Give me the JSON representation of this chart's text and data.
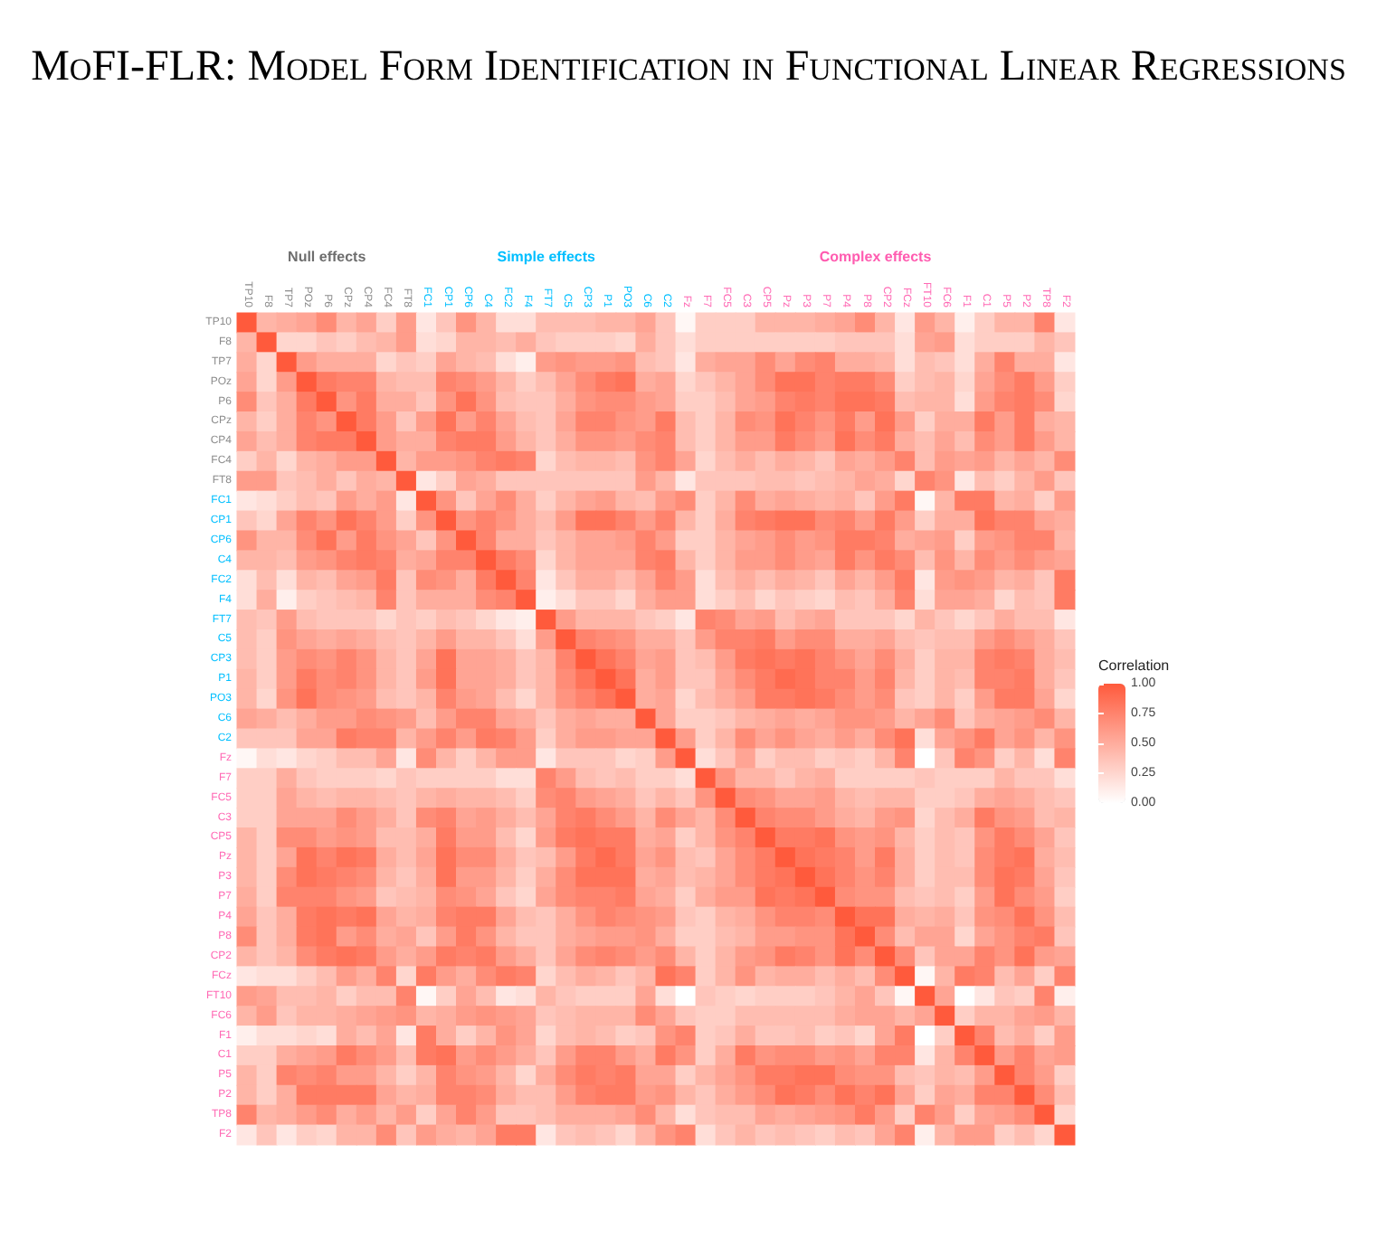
{
  "chart_data": {
    "type": "heatmap",
    "title": "MoFI-FLR: Model Form Identification in Functional Linear Regressions",
    "categories": [
      "TP10",
      "F8",
      "TP7",
      "POz",
      "P6",
      "CPz",
      "CP4",
      "FC4",
      "FT8",
      "FC1",
      "CP1",
      "CP6",
      "C4",
      "FC2",
      "F4",
      "FT7",
      "C5",
      "CP3",
      "P1",
      "PO3",
      "C6",
      "C2",
      "Fz",
      "F7",
      "FC5",
      "C3",
      "CP5",
      "Pz",
      "P3",
      "P7",
      "P4",
      "P8",
      "CP2",
      "FCz",
      "FT10",
      "FC6",
      "F1",
      "C1",
      "P5",
      "P2",
      "TP8",
      "F2"
    ],
    "y_categories": [
      "TP10",
      "F8",
      "TP7",
      "POz",
      "P6",
      "CPz",
      "CP4",
      "FC4",
      "FT8",
      "FC1",
      "CP1",
      "CP6",
      "C4",
      "FC2",
      "F4",
      "FT7",
      "C5",
      "CP3",
      "P1",
      "PO3",
      "C6",
      "C2",
      "Fz",
      "F7",
      "FC5",
      "C3",
      "CP5",
      "Pz",
      "P3",
      "P7",
      "P4",
      "P8",
      "CP2",
      "FCz",
      "FT10",
      "FC6",
      "F1",
      "C1",
      "P5",
      "P2",
      "TP8",
      "F2"
    ],
    "cells": [
      [
        1,
        0.45,
        0.5,
        0.55,
        0.7,
        0.45,
        0.55,
        0.3,
        0.6,
        0.15,
        0.35,
        0.65,
        0.45,
        0.2,
        0.2,
        0.4,
        0.4,
        0.4,
        0.45,
        0.45,
        0.55,
        0.35,
        0.05,
        0.3,
        0.3,
        0.3,
        0.45,
        0.45,
        0.45,
        0.5,
        0.55,
        0.7,
        0.45,
        0.15,
        0.6,
        0.45,
        0.1,
        0.3,
        0.45,
        0.45,
        0.75,
        0.15
      ],
      [
        0.45,
        1,
        0.25,
        0.25,
        0.35,
        0.3,
        0.4,
        0.45,
        0.6,
        0.2,
        0.25,
        0.45,
        0.45,
        0.4,
        0.5,
        0.35,
        0.3,
        0.3,
        0.3,
        0.25,
        0.5,
        0.35,
        0.2,
        0.3,
        0.3,
        0.3,
        0.3,
        0.3,
        0.3,
        0.3,
        0.35,
        0.35,
        0.35,
        0.2,
        0.55,
        0.6,
        0.2,
        0.3,
        0.3,
        0.3,
        0.45,
        0.35
      ],
      [
        0.5,
        0.25,
        1,
        0.6,
        0.5,
        0.5,
        0.5,
        0.25,
        0.35,
        0.3,
        0.55,
        0.45,
        0.4,
        0.2,
        0.1,
        0.6,
        0.65,
        0.6,
        0.6,
        0.65,
        0.4,
        0.35,
        0.15,
        0.5,
        0.55,
        0.55,
        0.7,
        0.55,
        0.7,
        0.75,
        0.5,
        0.5,
        0.45,
        0.2,
        0.4,
        0.35,
        0.2,
        0.5,
        0.75,
        0.5,
        0.5,
        0.15
      ],
      [
        0.55,
        0.25,
        0.6,
        1,
        0.8,
        0.75,
        0.75,
        0.45,
        0.4,
        0.4,
        0.75,
        0.7,
        0.6,
        0.45,
        0.3,
        0.4,
        0.55,
        0.7,
        0.8,
        0.85,
        0.5,
        0.55,
        0.25,
        0.35,
        0.45,
        0.55,
        0.7,
        0.85,
        0.85,
        0.75,
        0.8,
        0.8,
        0.7,
        0.3,
        0.4,
        0.45,
        0.25,
        0.55,
        0.7,
        0.8,
        0.6,
        0.3
      ],
      [
        0.7,
        0.35,
        0.5,
        0.8,
        1,
        0.65,
        0.8,
        0.5,
        0.5,
        0.35,
        0.65,
        0.85,
        0.65,
        0.4,
        0.35,
        0.35,
        0.5,
        0.65,
        0.7,
        0.7,
        0.6,
        0.55,
        0.3,
        0.3,
        0.4,
        0.55,
        0.6,
        0.75,
        0.8,
        0.75,
        0.85,
        0.85,
        0.8,
        0.4,
        0.45,
        0.45,
        0.2,
        0.6,
        0.75,
        0.8,
        0.7,
        0.25
      ],
      [
        0.45,
        0.3,
        0.5,
        0.75,
        0.65,
        1,
        0.8,
        0.6,
        0.35,
        0.6,
        0.85,
        0.6,
        0.75,
        0.55,
        0.4,
        0.35,
        0.55,
        0.75,
        0.75,
        0.65,
        0.6,
        0.8,
        0.4,
        0.3,
        0.45,
        0.7,
        0.65,
        0.85,
        0.75,
        0.65,
        0.8,
        0.6,
        0.85,
        0.6,
        0.3,
        0.5,
        0.5,
        0.8,
        0.6,
        0.8,
        0.5,
        0.45
      ],
      [
        0.55,
        0.4,
        0.5,
        0.75,
        0.8,
        0.8,
        1,
        0.6,
        0.5,
        0.5,
        0.75,
        0.8,
        0.8,
        0.6,
        0.45,
        0.35,
        0.5,
        0.65,
        0.65,
        0.6,
        0.7,
        0.75,
        0.4,
        0.3,
        0.45,
        0.6,
        0.6,
        0.8,
        0.7,
        0.6,
        0.85,
        0.7,
        0.8,
        0.5,
        0.4,
        0.55,
        0.4,
        0.7,
        0.6,
        0.8,
        0.6,
        0.45
      ],
      [
        0.3,
        0.45,
        0.25,
        0.45,
        0.5,
        0.6,
        0.6,
        1,
        0.45,
        0.6,
        0.6,
        0.65,
        0.75,
        0.8,
        0.75,
        0.25,
        0.4,
        0.45,
        0.45,
        0.4,
        0.65,
        0.75,
        0.55,
        0.25,
        0.4,
        0.5,
        0.4,
        0.5,
        0.45,
        0.35,
        0.55,
        0.5,
        0.6,
        0.75,
        0.4,
        0.6,
        0.55,
        0.6,
        0.45,
        0.55,
        0.45,
        0.7
      ],
      [
        0.6,
        0.6,
        0.35,
        0.4,
        0.5,
        0.35,
        0.5,
        0.45,
        1,
        0.15,
        0.3,
        0.55,
        0.5,
        0.35,
        0.35,
        0.35,
        0.35,
        0.35,
        0.35,
        0.35,
        0.6,
        0.45,
        0.15,
        0.35,
        0.35,
        0.35,
        0.4,
        0.4,
        0.35,
        0.4,
        0.45,
        0.55,
        0.5,
        0.25,
        0.75,
        0.65,
        0.15,
        0.4,
        0.3,
        0.45,
        0.6,
        0.35
      ],
      [
        0.15,
        0.2,
        0.3,
        0.4,
        0.35,
        0.6,
        0.5,
        0.6,
        0.15,
        1,
        0.65,
        0.35,
        0.55,
        0.7,
        0.5,
        0.3,
        0.45,
        0.55,
        0.6,
        0.45,
        0.4,
        0.6,
        0.7,
        0.3,
        0.45,
        0.7,
        0.5,
        0.55,
        0.5,
        0.45,
        0.5,
        0.35,
        0.6,
        0.8,
        0.05,
        0.45,
        0.8,
        0.8,
        0.45,
        0.5,
        0.3,
        0.6
      ],
      [
        0.35,
        0.25,
        0.55,
        0.75,
        0.65,
        0.85,
        0.75,
        0.6,
        0.3,
        0.65,
        1,
        0.65,
        0.75,
        0.65,
        0.5,
        0.4,
        0.6,
        0.85,
        0.85,
        0.75,
        0.6,
        0.75,
        0.45,
        0.3,
        0.5,
        0.75,
        0.8,
        0.85,
        0.85,
        0.7,
        0.75,
        0.6,
        0.8,
        0.6,
        0.3,
        0.5,
        0.5,
        0.85,
        0.75,
        0.75,
        0.55,
        0.5
      ],
      [
        0.65,
        0.45,
        0.45,
        0.7,
        0.85,
        0.6,
        0.8,
        0.65,
        0.55,
        0.35,
        0.65,
        1,
        0.75,
        0.5,
        0.5,
        0.35,
        0.45,
        0.55,
        0.55,
        0.6,
        0.75,
        0.6,
        0.3,
        0.3,
        0.45,
        0.55,
        0.6,
        0.7,
        0.6,
        0.65,
        0.8,
        0.8,
        0.75,
        0.5,
        0.55,
        0.6,
        0.3,
        0.6,
        0.65,
        0.75,
        0.75,
        0.45
      ],
      [
        0.45,
        0.45,
        0.4,
        0.6,
        0.65,
        0.75,
        0.8,
        0.75,
        0.5,
        0.55,
        0.75,
        0.75,
        1,
        0.8,
        0.7,
        0.25,
        0.45,
        0.55,
        0.55,
        0.55,
        0.75,
        0.8,
        0.45,
        0.3,
        0.45,
        0.6,
        0.6,
        0.7,
        0.6,
        0.55,
        0.8,
        0.65,
        0.8,
        0.7,
        0.4,
        0.65,
        0.45,
        0.7,
        0.6,
        0.7,
        0.6,
        0.55
      ],
      [
        0.2,
        0.4,
        0.2,
        0.45,
        0.4,
        0.55,
        0.6,
        0.8,
        0.35,
        0.7,
        0.65,
        0.5,
        0.8,
        1,
        0.75,
        0.15,
        0.35,
        0.5,
        0.5,
        0.4,
        0.55,
        0.75,
        0.6,
        0.2,
        0.4,
        0.5,
        0.4,
        0.5,
        0.45,
        0.35,
        0.55,
        0.45,
        0.6,
        0.8,
        0.15,
        0.6,
        0.65,
        0.6,
        0.45,
        0.5,
        0.35,
        0.8
      ],
      [
        0.2,
        0.5,
        0.1,
        0.3,
        0.35,
        0.4,
        0.45,
        0.75,
        0.35,
        0.5,
        0.5,
        0.5,
        0.7,
        0.75,
        1,
        0.1,
        0.2,
        0.35,
        0.35,
        0.25,
        0.5,
        0.6,
        0.6,
        0.2,
        0.3,
        0.4,
        0.25,
        0.35,
        0.3,
        0.25,
        0.4,
        0.35,
        0.5,
        0.75,
        0.2,
        0.55,
        0.55,
        0.5,
        0.25,
        0.4,
        0.35,
        0.8
      ],
      [
        0.4,
        0.35,
        0.6,
        0.4,
        0.35,
        0.35,
        0.35,
        0.25,
        0.35,
        0.3,
        0.4,
        0.35,
        0.25,
        0.15,
        0.1,
        1,
        0.6,
        0.45,
        0.45,
        0.45,
        0.35,
        0.3,
        0.15,
        0.75,
        0.7,
        0.55,
        0.6,
        0.4,
        0.5,
        0.55,
        0.35,
        0.35,
        0.35,
        0.25,
        0.45,
        0.35,
        0.25,
        0.35,
        0.5,
        0.4,
        0.4,
        0.15
      ],
      [
        0.4,
        0.3,
        0.65,
        0.55,
        0.5,
        0.55,
        0.5,
        0.4,
        0.35,
        0.45,
        0.6,
        0.45,
        0.45,
        0.35,
        0.2,
        0.6,
        1,
        0.75,
        0.7,
        0.65,
        0.5,
        0.5,
        0.35,
        0.6,
        0.75,
        0.75,
        0.8,
        0.6,
        0.7,
        0.7,
        0.5,
        0.5,
        0.55,
        0.4,
        0.35,
        0.4,
        0.4,
        0.6,
        0.7,
        0.6,
        0.5,
        0.35
      ],
      [
        0.4,
        0.3,
        0.6,
        0.7,
        0.65,
        0.75,
        0.65,
        0.45,
        0.35,
        0.55,
        0.85,
        0.55,
        0.55,
        0.5,
        0.35,
        0.45,
        0.75,
        1,
        0.85,
        0.75,
        0.55,
        0.6,
        0.35,
        0.4,
        0.6,
        0.8,
        0.85,
        0.8,
        0.85,
        0.75,
        0.65,
        0.55,
        0.7,
        0.5,
        0.3,
        0.45,
        0.45,
        0.75,
        0.8,
        0.75,
        0.5,
        0.4
      ],
      [
        0.45,
        0.3,
        0.6,
        0.8,
        0.7,
        0.75,
        0.65,
        0.45,
        0.35,
        0.6,
        0.85,
        0.55,
        0.55,
        0.5,
        0.35,
        0.45,
        0.7,
        0.85,
        1,
        0.85,
        0.5,
        0.6,
        0.35,
        0.35,
        0.55,
        0.7,
        0.8,
        0.9,
        0.85,
        0.75,
        0.75,
        0.6,
        0.75,
        0.45,
        0.3,
        0.45,
        0.4,
        0.75,
        0.75,
        0.8,
        0.5,
        0.35
      ],
      [
        0.45,
        0.25,
        0.65,
        0.85,
        0.7,
        0.65,
        0.6,
        0.4,
        0.35,
        0.45,
        0.75,
        0.6,
        0.55,
        0.4,
        0.25,
        0.45,
        0.65,
        0.75,
        0.85,
        1,
        0.5,
        0.55,
        0.25,
        0.4,
        0.5,
        0.6,
        0.8,
        0.8,
        0.85,
        0.8,
        0.7,
        0.6,
        0.7,
        0.35,
        0.3,
        0.45,
        0.3,
        0.6,
        0.8,
        0.8,
        0.55,
        0.25
      ],
      [
        0.55,
        0.5,
        0.4,
        0.5,
        0.6,
        0.6,
        0.7,
        0.65,
        0.6,
        0.4,
        0.6,
        0.75,
        0.75,
        0.55,
        0.5,
        0.35,
        0.5,
        0.55,
        0.5,
        0.5,
        1,
        0.55,
        0.3,
        0.3,
        0.35,
        0.45,
        0.5,
        0.55,
        0.5,
        0.55,
        0.65,
        0.65,
        0.6,
        0.45,
        0.55,
        0.7,
        0.35,
        0.5,
        0.55,
        0.6,
        0.7,
        0.45
      ],
      [
        0.35,
        0.35,
        0.35,
        0.55,
        0.55,
        0.8,
        0.75,
        0.75,
        0.45,
        0.6,
        0.75,
        0.6,
        0.8,
        0.75,
        0.6,
        0.3,
        0.5,
        0.6,
        0.6,
        0.55,
        0.55,
        1,
        0.6,
        0.3,
        0.45,
        0.7,
        0.55,
        0.65,
        0.55,
        0.5,
        0.6,
        0.5,
        0.7,
        0.85,
        0.2,
        0.55,
        0.65,
        0.8,
        0.55,
        0.65,
        0.45,
        0.65
      ],
      [
        0.05,
        0.2,
        0.15,
        0.25,
        0.3,
        0.4,
        0.4,
        0.55,
        0.15,
        0.7,
        0.45,
        0.3,
        0.45,
        0.6,
        0.6,
        0.15,
        0.35,
        0.35,
        0.35,
        0.25,
        0.3,
        0.6,
        1,
        0.2,
        0.35,
        0.55,
        0.3,
        0.4,
        0.4,
        0.3,
        0.35,
        0.3,
        0.45,
        0.75,
        0,
        0.35,
        0.75,
        0.65,
        0.3,
        0.45,
        0.2,
        0.75
      ],
      [
        0.3,
        0.3,
        0.5,
        0.35,
        0.3,
        0.3,
        0.3,
        0.25,
        0.35,
        0.3,
        0.3,
        0.3,
        0.3,
        0.2,
        0.2,
        0.75,
        0.6,
        0.4,
        0.35,
        0.4,
        0.3,
        0.3,
        0.2,
        1,
        0.65,
        0.45,
        0.45,
        0.35,
        0.45,
        0.5,
        0.3,
        0.3,
        0.3,
        0.3,
        0.35,
        0.3,
        0.3,
        0.3,
        0.45,
        0.35,
        0.35,
        0.2
      ],
      [
        0.3,
        0.3,
        0.55,
        0.45,
        0.4,
        0.45,
        0.45,
        0.4,
        0.35,
        0.45,
        0.5,
        0.45,
        0.45,
        0.4,
        0.3,
        0.7,
        0.75,
        0.6,
        0.55,
        0.5,
        0.35,
        0.45,
        0.35,
        0.65,
        1,
        0.7,
        0.65,
        0.55,
        0.55,
        0.6,
        0.45,
        0.4,
        0.45,
        0.45,
        0.3,
        0.3,
        0.35,
        0.5,
        0.55,
        0.5,
        0.4,
        0.35
      ],
      [
        0.3,
        0.3,
        0.55,
        0.55,
        0.55,
        0.7,
        0.6,
        0.5,
        0.35,
        0.7,
        0.75,
        0.55,
        0.6,
        0.5,
        0.4,
        0.55,
        0.75,
        0.8,
        0.7,
        0.6,
        0.45,
        0.7,
        0.55,
        0.45,
        0.7,
        1,
        0.75,
        0.7,
        0.7,
        0.6,
        0.5,
        0.45,
        0.6,
        0.65,
        0.25,
        0.4,
        0.5,
        0.8,
        0.65,
        0.6,
        0.4,
        0.45
      ],
      [
        0.45,
        0.3,
        0.7,
        0.7,
        0.6,
        0.65,
        0.6,
        0.4,
        0.4,
        0.5,
        0.8,
        0.6,
        0.6,
        0.4,
        0.25,
        0.6,
        0.8,
        0.85,
        0.8,
        0.8,
        0.5,
        0.55,
        0.3,
        0.45,
        0.65,
        0.75,
        1,
        0.8,
        0.8,
        0.85,
        0.65,
        0.6,
        0.65,
        0.45,
        0.3,
        0.4,
        0.35,
        0.65,
        0.8,
        0.7,
        0.55,
        0.35
      ],
      [
        0.45,
        0.3,
        0.55,
        0.85,
        0.75,
        0.85,
        0.8,
        0.5,
        0.4,
        0.55,
        0.85,
        0.7,
        0.7,
        0.5,
        0.35,
        0.4,
        0.6,
        0.8,
        0.9,
        0.8,
        0.55,
        0.65,
        0.4,
        0.35,
        0.55,
        0.7,
        0.8,
        1,
        0.85,
        0.8,
        0.75,
        0.6,
        0.8,
        0.5,
        0.3,
        0.4,
        0.35,
        0.7,
        0.8,
        0.85,
        0.5,
        0.4
      ],
      [
        0.45,
        0.3,
        0.7,
        0.85,
        0.8,
        0.75,
        0.7,
        0.45,
        0.35,
        0.5,
        0.85,
        0.6,
        0.6,
        0.45,
        0.3,
        0.5,
        0.7,
        0.85,
        0.85,
        0.85,
        0.5,
        0.55,
        0.4,
        0.45,
        0.55,
        0.7,
        0.8,
        0.85,
        1,
        0.85,
        0.75,
        0.65,
        0.75,
        0.5,
        0.3,
        0.4,
        0.4,
        0.7,
        0.85,
        0.8,
        0.55,
        0.35
      ],
      [
        0.5,
        0.3,
        0.75,
        0.75,
        0.75,
        0.65,
        0.6,
        0.35,
        0.4,
        0.45,
        0.7,
        0.65,
        0.55,
        0.35,
        0.25,
        0.55,
        0.7,
        0.75,
        0.75,
        0.8,
        0.55,
        0.5,
        0.3,
        0.5,
        0.6,
        0.6,
        0.85,
        0.8,
        0.85,
        1,
        0.7,
        0.65,
        0.65,
        0.4,
        0.35,
        0.4,
        0.3,
        0.6,
        0.85,
        0.7,
        0.6,
        0.3
      ],
      [
        0.55,
        0.35,
        0.5,
        0.8,
        0.85,
        0.8,
        0.85,
        0.55,
        0.45,
        0.5,
        0.75,
        0.8,
        0.8,
        0.55,
        0.4,
        0.35,
        0.5,
        0.65,
        0.75,
        0.7,
        0.65,
        0.6,
        0.35,
        0.3,
        0.45,
        0.5,
        0.65,
        0.75,
        0.75,
        0.7,
        1,
        0.85,
        0.85,
        0.5,
        0.45,
        0.5,
        0.35,
        0.65,
        0.7,
        0.85,
        0.65,
        0.4
      ],
      [
        0.7,
        0.35,
        0.5,
        0.8,
        0.85,
        0.6,
        0.7,
        0.5,
        0.55,
        0.35,
        0.6,
        0.8,
        0.65,
        0.45,
        0.35,
        0.35,
        0.5,
        0.55,
        0.6,
        0.6,
        0.65,
        0.5,
        0.3,
        0.3,
        0.4,
        0.45,
        0.6,
        0.6,
        0.65,
        0.65,
        0.85,
        1,
        0.7,
        0.4,
        0.55,
        0.55,
        0.25,
        0.55,
        0.65,
        0.75,
        0.8,
        0.35
      ],
      [
        0.45,
        0.35,
        0.45,
        0.7,
        0.8,
        0.85,
        0.8,
        0.6,
        0.5,
        0.6,
        0.8,
        0.75,
        0.8,
        0.6,
        0.5,
        0.35,
        0.55,
        0.7,
        0.75,
        0.7,
        0.6,
        0.7,
        0.45,
        0.3,
        0.45,
        0.6,
        0.65,
        0.8,
        0.75,
        0.65,
        0.85,
        0.7,
        1,
        0.7,
        0.35,
        0.55,
        0.55,
        0.75,
        0.65,
        0.85,
        0.6,
        0.55
      ],
      [
        0.15,
        0.2,
        0.2,
        0.3,
        0.4,
        0.6,
        0.5,
        0.75,
        0.25,
        0.8,
        0.6,
        0.5,
        0.7,
        0.8,
        0.75,
        0.25,
        0.4,
        0.5,
        0.45,
        0.35,
        0.45,
        0.85,
        0.75,
        0.3,
        0.45,
        0.65,
        0.45,
        0.5,
        0.5,
        0.4,
        0.5,
        0.4,
        0.7,
        1,
        0.05,
        0.45,
        0.8,
        0.75,
        0.4,
        0.55,
        0.3,
        0.75
      ],
      [
        0.6,
        0.55,
        0.4,
        0.4,
        0.45,
        0.3,
        0.4,
        0.4,
        0.75,
        0.05,
        0.3,
        0.55,
        0.4,
        0.15,
        0.2,
        0.45,
        0.35,
        0.3,
        0.3,
        0.3,
        0.55,
        0.2,
        0,
        0.35,
        0.3,
        0.25,
        0.3,
        0.3,
        0.3,
        0.35,
        0.45,
        0.55,
        0.35,
        0.05,
        1,
        0.55,
        0,
        0.15,
        0.35,
        0.3,
        0.75,
        0.1
      ],
      [
        0.45,
        0.6,
        0.35,
        0.45,
        0.45,
        0.5,
        0.55,
        0.6,
        0.65,
        0.45,
        0.5,
        0.6,
        0.65,
        0.6,
        0.55,
        0.35,
        0.4,
        0.45,
        0.45,
        0.45,
        0.7,
        0.55,
        0.35,
        0.3,
        0.3,
        0.4,
        0.4,
        0.4,
        0.4,
        0.4,
        0.5,
        0.55,
        0.55,
        0.45,
        0.55,
        1,
        0.3,
        0.45,
        0.45,
        0.55,
        0.6,
        0.45
      ],
      [
        0.1,
        0.2,
        0.2,
        0.25,
        0.2,
        0.5,
        0.4,
        0.55,
        0.15,
        0.8,
        0.5,
        0.3,
        0.45,
        0.65,
        0.55,
        0.25,
        0.4,
        0.45,
        0.4,
        0.3,
        0.35,
        0.65,
        0.75,
        0.3,
        0.35,
        0.5,
        0.35,
        0.35,
        0.4,
        0.3,
        0.35,
        0.25,
        0.55,
        0.8,
        0,
        0.3,
        1,
        0.75,
        0.4,
        0.5,
        0.3,
        0.6
      ],
      [
        0.3,
        0.3,
        0.5,
        0.55,
        0.6,
        0.8,
        0.7,
        0.6,
        0.4,
        0.8,
        0.85,
        0.6,
        0.7,
        0.6,
        0.5,
        0.35,
        0.6,
        0.75,
        0.75,
        0.6,
        0.5,
        0.8,
        0.65,
        0.3,
        0.5,
        0.8,
        0.65,
        0.7,
        0.7,
        0.6,
        0.65,
        0.55,
        0.75,
        0.75,
        0.15,
        0.45,
        0.75,
        1,
        0.6,
        0.75,
        0.55,
        0.6
      ],
      [
        0.45,
        0.3,
        0.75,
        0.7,
        0.75,
        0.6,
        0.6,
        0.45,
        0.3,
        0.45,
        0.75,
        0.65,
        0.6,
        0.45,
        0.25,
        0.5,
        0.7,
        0.8,
        0.75,
        0.8,
        0.55,
        0.55,
        0.3,
        0.45,
        0.55,
        0.65,
        0.8,
        0.8,
        0.85,
        0.85,
        0.7,
        0.65,
        0.65,
        0.4,
        0.35,
        0.45,
        0.4,
        0.6,
        1,
        0.75,
        0.6,
        0.3
      ],
      [
        0.45,
        0.3,
        0.5,
        0.8,
        0.8,
        0.8,
        0.8,
        0.55,
        0.45,
        0.5,
        0.75,
        0.75,
        0.7,
        0.5,
        0.4,
        0.4,
        0.6,
        0.75,
        0.8,
        0.8,
        0.6,
        0.65,
        0.45,
        0.35,
        0.5,
        0.6,
        0.7,
        0.85,
        0.8,
        0.7,
        0.85,
        0.75,
        0.85,
        0.55,
        0.3,
        0.55,
        0.5,
        0.75,
        0.75,
        1,
        0.7,
        0.4
      ],
      [
        0.75,
        0.45,
        0.5,
        0.6,
        0.7,
        0.5,
        0.6,
        0.45,
        0.6,
        0.3,
        0.55,
        0.75,
        0.6,
        0.35,
        0.35,
        0.4,
        0.5,
        0.5,
        0.5,
        0.55,
        0.7,
        0.45,
        0.2,
        0.35,
        0.4,
        0.4,
        0.55,
        0.5,
        0.55,
        0.6,
        0.65,
        0.8,
        0.6,
        0.3,
        0.75,
        0.6,
        0.3,
        0.55,
        0.6,
        0.7,
        1,
        0.25
      ],
      [
        0.15,
        0.35,
        0.15,
        0.3,
        0.25,
        0.45,
        0.45,
        0.7,
        0.35,
        0.6,
        0.5,
        0.45,
        0.55,
        0.8,
        0.8,
        0.15,
        0.35,
        0.4,
        0.35,
        0.25,
        0.45,
        0.65,
        0.75,
        0.2,
        0.35,
        0.45,
        0.35,
        0.4,
        0.35,
        0.3,
        0.4,
        0.35,
        0.55,
        0.75,
        0.1,
        0.45,
        0.6,
        0.6,
        0.3,
        0.4,
        0.25,
        1
      ]
    ],
    "clabel": "Correlation",
    "clim": [
      0,
      1
    ],
    "cticks": [
      {
        "value": 0,
        "label": "0.00"
      },
      {
        "value": 0.25,
        "label": "0.25"
      },
      {
        "value": 0.5,
        "label": "0.50"
      },
      {
        "value": 0.75,
        "label": "0.75"
      },
      {
        "value": 1,
        "label": "1.00"
      }
    ],
    "annotations": [
      "Null effects",
      "Simple effects",
      "Complex effects"
    ]
  }
}
